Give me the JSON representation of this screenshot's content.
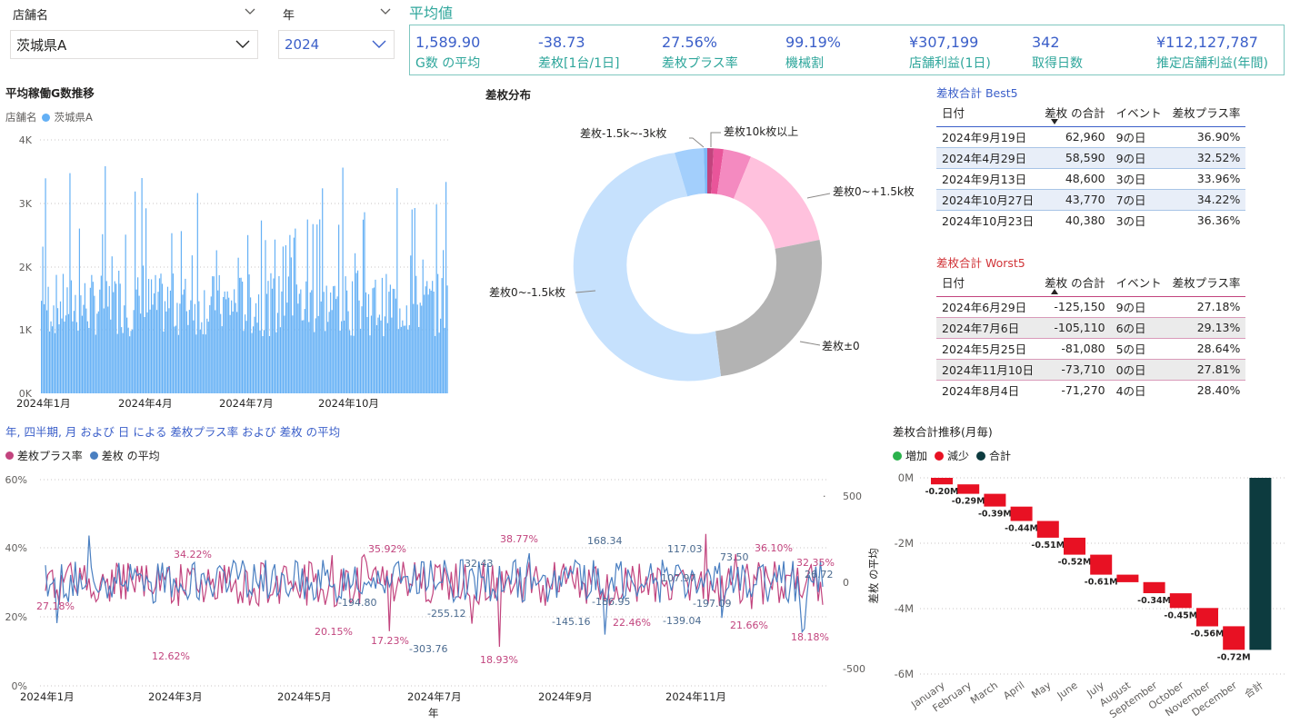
{
  "slicers": {
    "store": {
      "label": "店舗名",
      "value": "茨城県A"
    },
    "year": {
      "label": "年",
      "value": "2024"
    }
  },
  "kpi": {
    "title": "平均値",
    "items": [
      {
        "value": "1,589.90",
        "label": "G数 の平均"
      },
      {
        "value": "-38.73",
        "label": "差枚[1台/1日]"
      },
      {
        "value": "27.56%",
        "label": "差枚プラス率"
      },
      {
        "value": "99.19%",
        "label": "機械割"
      },
      {
        "value": "¥307,199",
        "label": "店舗利益(1日)"
      },
      {
        "value": "342",
        "label": "取得日数"
      },
      {
        "value": "¥112,127,787",
        "label": "推定店舗利益(年間)"
      }
    ]
  },
  "colors": {
    "accent": "#3b5fc9",
    "teal": "#2ea69b",
    "bar": "#64b0f5",
    "pink": "#c2447e",
    "blue": "#4a7fc1",
    "red": "#e81123",
    "dark": "#0d3b3f",
    "green": "#2bb24c"
  },
  "gcount": {
    "title": "平均稼働G数推移",
    "legend_label": "店舗名",
    "legend_item": "茨城県A",
    "yticks": [
      "4K",
      "3K",
      "2K",
      "1K",
      "0K"
    ],
    "xticks": [
      "2024年1月",
      "2024年4月",
      "2024年7月",
      "2024年10月"
    ]
  },
  "donut": {
    "title": "差枚分布",
    "labels": {
      "top_left": "差枚-1.5k~-3k枚",
      "top_right": "差枚10k枚以上",
      "right": "差枚0~+1.5k枚",
      "left": "差枚0~-1.5k枚",
      "bottom_right": "差枚±0"
    }
  },
  "best": {
    "title": "差枚合計 Best5",
    "headers": [
      "日付",
      "差枚 の合計",
      "イベント",
      "差枚プラス率"
    ],
    "rows": [
      [
        "2024年9月19日",
        "62,960",
        "9の日",
        "36.90%"
      ],
      [
        "2024年4月29日",
        "58,590",
        "9の日",
        "32.52%"
      ],
      [
        "2024年9月13日",
        "48,600",
        "3の日",
        "33.96%"
      ],
      [
        "2024年10月27日",
        "43,770",
        "7の日",
        "34.22%"
      ],
      [
        "2024年10月23日",
        "40,380",
        "3の日",
        "36.36%"
      ]
    ]
  },
  "worst": {
    "title": "差枚合計 Worst5",
    "headers": [
      "日付",
      "差枚 の合計",
      "イベント",
      "差枚プラス率"
    ],
    "rows": [
      [
        "2024年6月29日",
        "-125,150",
        "9の日",
        "27.18%"
      ],
      [
        "2024年7月6日",
        "-105,110",
        "6の日",
        "29.13%"
      ],
      [
        "2024年5月25日",
        "-81,080",
        "5の日",
        "28.64%"
      ],
      [
        "2024年11月10日",
        "-73,710",
        "0の日",
        "27.81%"
      ],
      [
        "2024年8月4日",
        "-71,270",
        "4の日",
        "28.40%"
      ]
    ]
  },
  "combo": {
    "title": "年, 四半期, 月 および 日 による 差枚プラス率 および 差枚 の平均",
    "legend": [
      "差枚プラス率",
      "差枚 の平均"
    ],
    "yleft": [
      "60%",
      "40%",
      "20%",
      "0%"
    ],
    "yright": [
      "500",
      "0",
      "-500"
    ],
    "xticks": [
      "2024年1月",
      "2024年3月",
      "2024年5月",
      "2024年7月",
      "2024年9月",
      "2024年11月"
    ],
    "xlabel": "年",
    "pink_labels": [
      "27.18%",
      "34.22%",
      "12.62%",
      "20.15%",
      "35.92%",
      "17.23%",
      "18.93%",
      "38.77%",
      "22.46%",
      "21.66%",
      "36.10%",
      "18.18%",
      "32.35%"
    ],
    "blue_labels": [
      "-194.80",
      "-255.12",
      "-303.76",
      "32.43",
      "168.34",
      "-145.16",
      "-186.95",
      "117.03",
      "-139.04",
      "107.97",
      "73.50",
      "-197.09",
      "26.72"
    ]
  },
  "waterfall": {
    "title": "差枚合計推移(月毎)",
    "legend": [
      "増加",
      "減少",
      "合計"
    ],
    "ylabel": "差枚 の平均",
    "yticks": [
      "0M",
      "-2M",
      "-4M",
      "-6M"
    ],
    "total_label": "合計",
    "chart_data": {
      "type": "bar",
      "categories": [
        "January",
        "February",
        "March",
        "April",
        "May",
        "June",
        "July",
        "August",
        "September",
        "October",
        "November",
        "December"
      ],
      "values": [
        -0.2,
        -0.29,
        -0.39,
        -0.44,
        -0.51,
        -0.52,
        -0.61,
        -0.23,
        -0.34,
        -0.45,
        -0.56,
        -0.72
      ],
      "labels": [
        "-0.20M",
        "-0.29M",
        "-0.39M",
        "-0.44M",
        "-0.51M",
        "-0.52M",
        "-0.61M",
        "",
        "-0.34M",
        "-0.45M",
        "-0.56M",
        "-0.72M"
      ],
      "ylim": [
        -6,
        0
      ]
    }
  }
}
